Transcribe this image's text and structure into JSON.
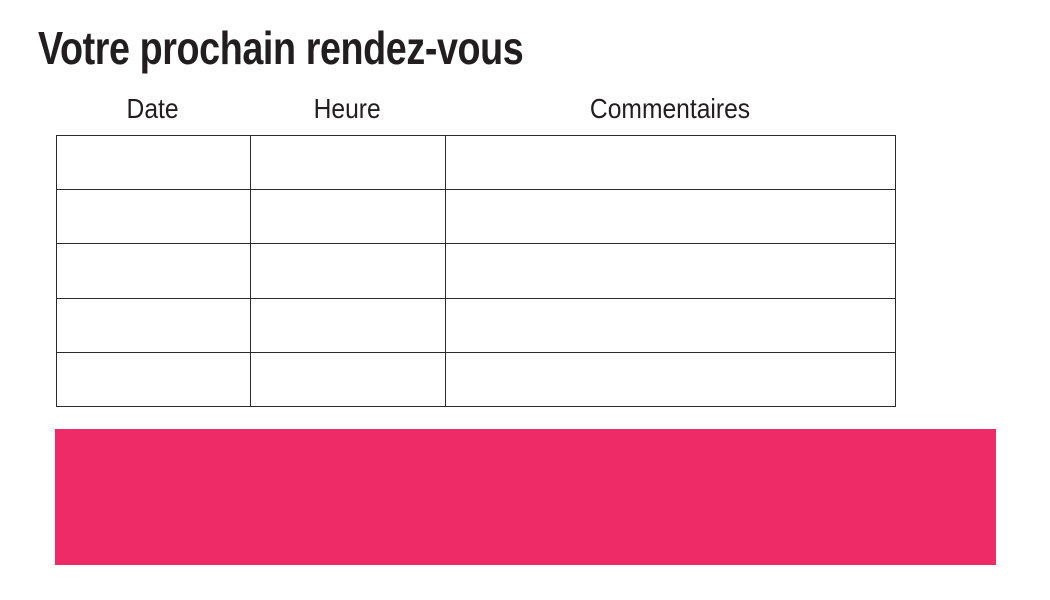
{
  "slide": {
    "title": "Votre prochain rendez-vous"
  },
  "appointments_table": {
    "headers": [
      "Date",
      "Heure",
      "Commentaires"
    ],
    "rows": [
      [
        "",
        "",
        ""
      ],
      [
        "",
        "",
        ""
      ],
      [
        "",
        "",
        ""
      ],
      [
        "",
        "",
        ""
      ],
      [
        "",
        "",
        ""
      ]
    ]
  },
  "colors": {
    "accent_pink": "#EE2A67",
    "text_dark": "#221E1F",
    "table_border": "#2B2B2B"
  }
}
